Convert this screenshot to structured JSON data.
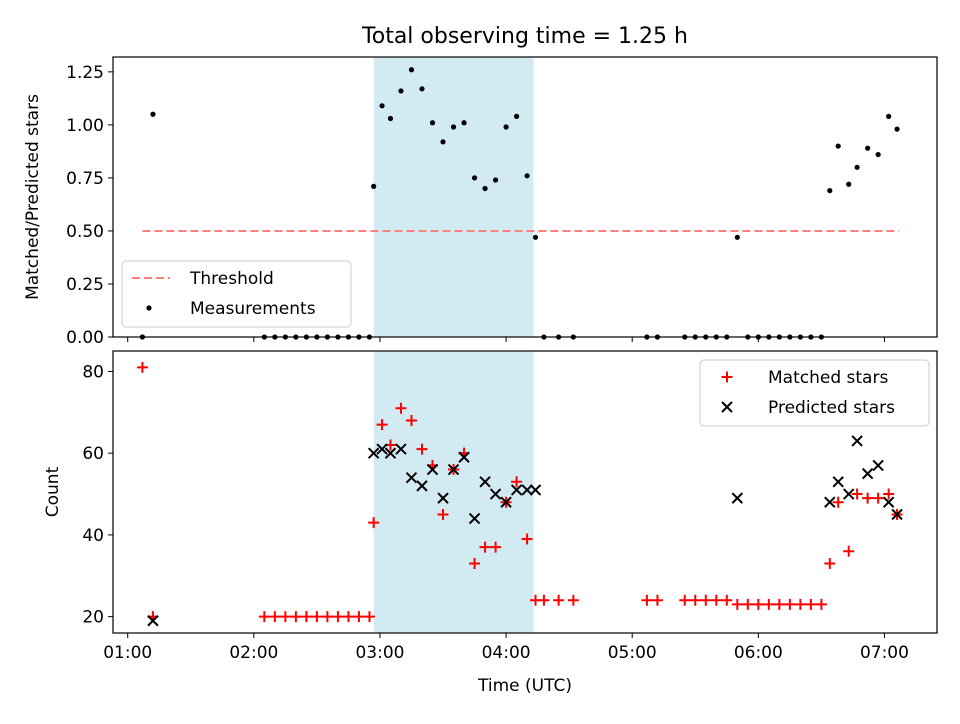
{
  "figure": {
    "title": "Total observing time = 1.25 h",
    "xlabel": "Time (UTC)"
  },
  "chart_data": [
    {
      "type": "scatter",
      "panel": "top",
      "title": "Total observing time = 1.25 h",
      "xlabel": "",
      "ylabel": "Matched/Predicted stars",
      "xlim": [
        "00:53",
        "07:25"
      ],
      "ylim": [
        0,
        1.32
      ],
      "yticks": [
        0.0,
        0.25,
        0.5,
        0.75,
        1.0,
        1.25
      ],
      "ytick_labels": [
        "0.00",
        "0.25",
        "0.50",
        "0.75",
        "1.00",
        "1.25"
      ],
      "shaded_region": {
        "x0": "02:57",
        "x1": "04:13",
        "color": "#add8e6"
      },
      "legend": {
        "position": "lower-left"
      },
      "series": [
        {
          "name": "Threshold",
          "kind": "dashed-line",
          "color": "#ff7f7f",
          "x": [
            "01:07",
            "07:07"
          ],
          "y": [
            0.5,
            0.5
          ]
        },
        {
          "name": "Measurements",
          "kind": "points",
          "color": "#000000",
          "x": [
            "01:07",
            "01:12",
            "02:05",
            "02:10",
            "02:15",
            "02:20",
            "02:25",
            "02:30",
            "02:35",
            "02:40",
            "02:45",
            "02:50",
            "02:55",
            "02:57",
            "03:01",
            "03:05",
            "03:10",
            "03:15",
            "03:20",
            "03:25",
            "03:30",
            "03:35",
            "03:40",
            "03:45",
            "03:50",
            "03:55",
            "04:00",
            "04:05",
            "04:10",
            "04:14",
            "04:18",
            "04:25",
            "04:32",
            "05:07",
            "05:12",
            "05:25",
            "05:30",
            "05:35",
            "05:40",
            "05:45",
            "05:50",
            "05:55",
            "06:00",
            "06:05",
            "06:10",
            "06:15",
            "06:20",
            "06:25",
            "06:30",
            "06:34",
            "06:38",
            "06:43",
            "06:47",
            "06:52",
            "06:57",
            "07:02",
            "07:06"
          ],
          "y": [
            0.0,
            1.05,
            0.0,
            0.0,
            0.0,
            0.0,
            0.0,
            0.0,
            0.0,
            0.0,
            0.0,
            0.0,
            0.0,
            0.71,
            1.09,
            1.03,
            1.16,
            1.26,
            1.17,
            1.01,
            0.92,
            0.99,
            1.01,
            0.75,
            0.7,
            0.74,
            0.99,
            1.04,
            0.76,
            0.47,
            0.0,
            0.0,
            0.0,
            0.0,
            0.0,
            0.0,
            0.0,
            0.0,
            0.0,
            0.0,
            0.47,
            0.0,
            0.0,
            0.0,
            0.0,
            0.0,
            0.0,
            0.0,
            0.0,
            0.69,
            0.9,
            0.72,
            0.8,
            0.89,
            0.86,
            1.04,
            0.98
          ]
        }
      ]
    },
    {
      "type": "scatter",
      "panel": "bottom",
      "xlabel": "Time (UTC)",
      "ylabel": "Count",
      "xlim": [
        "00:53",
        "07:25"
      ],
      "ylim": [
        16,
        85
      ],
      "yticks": [
        20,
        40,
        60,
        80
      ],
      "ytick_labels": [
        "20",
        "40",
        "60",
        "80"
      ],
      "xticks": [
        "01:00",
        "02:00",
        "03:00",
        "04:00",
        "05:00",
        "06:00",
        "07:00"
      ],
      "xtick_labels": [
        "01:00",
        "02:00",
        "03:00",
        "04:00",
        "05:00",
        "06:00",
        "07:00"
      ],
      "shaded_region": {
        "x0": "02:57",
        "x1": "04:13",
        "color": "#add8e6"
      },
      "legend": {
        "position": "upper-right"
      },
      "series": [
        {
          "name": "Matched stars",
          "kind": "plus",
          "color": "#ff0000",
          "x": [
            "01:07",
            "01:12",
            "02:05",
            "02:10",
            "02:15",
            "02:20",
            "02:25",
            "02:30",
            "02:35",
            "02:40",
            "02:45",
            "02:50",
            "02:55",
            "02:57",
            "03:01",
            "03:05",
            "03:10",
            "03:15",
            "03:20",
            "03:25",
            "03:30",
            "03:35",
            "03:40",
            "03:45",
            "03:50",
            "03:55",
            "04:00",
            "04:05",
            "04:10",
            "04:14",
            "04:18",
            "04:25",
            "04:32",
            "05:07",
            "05:12",
            "05:25",
            "05:30",
            "05:35",
            "05:40",
            "05:45",
            "05:50",
            "05:55",
            "06:00",
            "06:05",
            "06:10",
            "06:15",
            "06:20",
            "06:25",
            "06:30",
            "06:34",
            "06:38",
            "06:43",
            "06:47",
            "06:52",
            "06:57",
            "07:02",
            "07:06"
          ],
          "y": [
            81,
            20,
            20,
            20,
            20,
            20,
            20,
            20,
            20,
            20,
            20,
            20,
            20,
            43,
            67,
            62,
            71,
            68,
            61,
            57,
            45,
            56,
            60,
            33,
            37,
            37,
            48,
            53,
            39,
            24,
            24,
            24,
            24,
            24,
            24,
            24,
            24,
            24,
            24,
            24,
            23,
            23,
            23,
            23,
            23,
            23,
            23,
            23,
            23,
            33,
            48,
            36,
            50,
            49,
            49,
            50,
            45
          ]
        },
        {
          "name": "Predicted stars",
          "kind": "cross",
          "color": "#000000",
          "x": [
            "01:12",
            "02:57",
            "03:01",
            "03:05",
            "03:10",
            "03:15",
            "03:20",
            "03:25",
            "03:30",
            "03:35",
            "03:40",
            "03:45",
            "03:50",
            "03:55",
            "04:00",
            "04:05",
            "04:10",
            "04:14",
            "05:50",
            "06:34",
            "06:38",
            "06:43",
            "06:47",
            "06:52",
            "06:57",
            "07:02",
            "07:06"
          ],
          "y": [
            19,
            60,
            61,
            60,
            61,
            54,
            52,
            56,
            49,
            56,
            59,
            44,
            53,
            50,
            48,
            51,
            51,
            51,
            49,
            48,
            53,
            50,
            63,
            55,
            57,
            48,
            45
          ]
        }
      ]
    }
  ]
}
